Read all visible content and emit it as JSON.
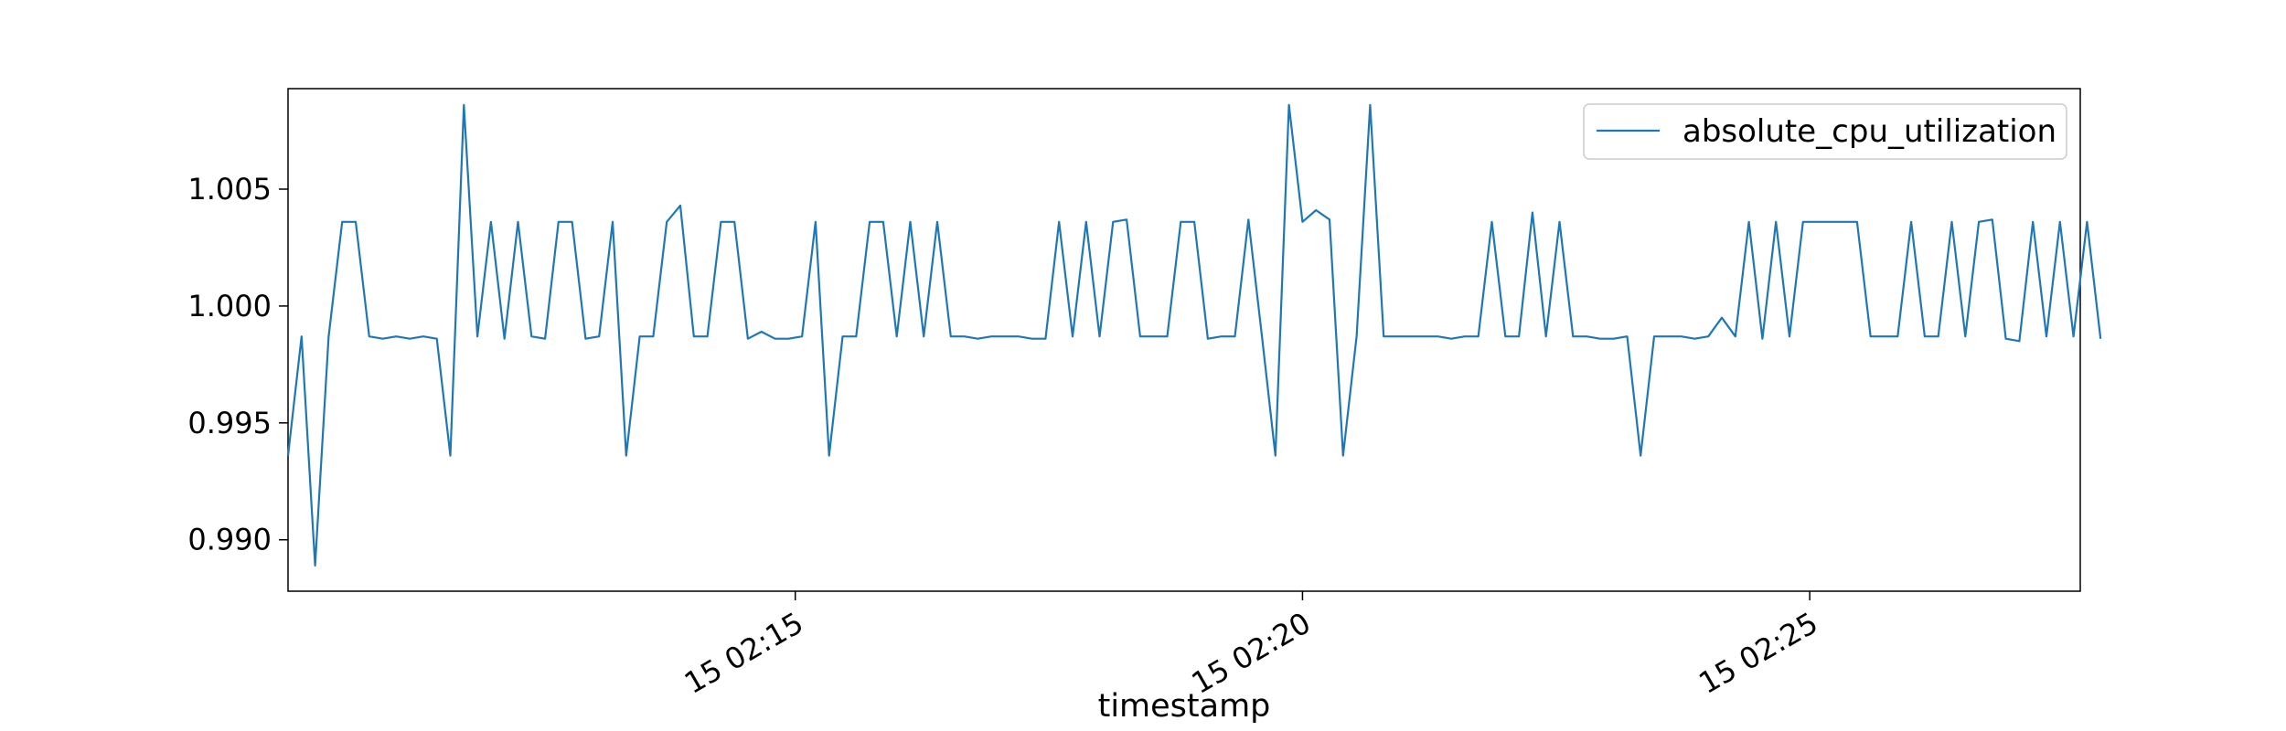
{
  "chart_data": {
    "type": "line",
    "xlabel": "timestamp",
    "ylabel": "",
    "title": "",
    "legend_position": "top-right",
    "grid": false,
    "ylim": [
      0.9878,
      1.0093
    ],
    "xlim": [
      "15 02:10:00",
      "15 02:27:40"
    ],
    "x_ticks": [
      {
        "value": "15 02:15:00",
        "label": "15 02:15"
      },
      {
        "value": "15 02:20:00",
        "label": "15 02:20"
      },
      {
        "value": "15 02:25:00",
        "label": "15 02:25"
      }
    ],
    "y_ticks": [
      {
        "value": 0.99,
        "label": "0.990"
      },
      {
        "value": 0.995,
        "label": "0.995"
      },
      {
        "value": 1.0,
        "label": "1.000"
      },
      {
        "value": 1.005,
        "label": "1.005"
      }
    ],
    "colors": {
      "line": "#1f77b4"
    },
    "series": [
      {
        "name": "absolute_cpu_utilization",
        "x_start": "15 02:10:00",
        "x_step_seconds": 8,
        "values": [
          0.9936,
          0.9987,
          0.9889,
          0.9987,
          1.0036,
          1.0036,
          0.9987,
          0.9986,
          0.9987,
          0.9986,
          0.9987,
          0.9986,
          0.9936,
          1.0086,
          0.9987,
          1.0036,
          0.9986,
          1.0036,
          0.9987,
          0.9986,
          1.0036,
          1.0036,
          0.9986,
          0.9987,
          1.0036,
          0.9936,
          0.9987,
          0.9987,
          1.0036,
          1.0043,
          0.9987,
          0.9987,
          1.0036,
          1.0036,
          0.9986,
          0.9989,
          0.9986,
          0.9986,
          0.9987,
          1.0036,
          0.9936,
          0.9987,
          0.9987,
          1.0036,
          1.0036,
          0.9987,
          1.0036,
          0.9987,
          1.0036,
          0.9987,
          0.9987,
          0.9986,
          0.9987,
          0.9987,
          0.9987,
          0.9986,
          0.9986,
          1.0036,
          0.9987,
          1.0036,
          0.9987,
          1.0036,
          1.0037,
          0.9987,
          0.9987,
          0.9987,
          1.0036,
          1.0036,
          0.9986,
          0.9987,
          0.9987,
          1.0037,
          0.9987,
          0.9936,
          1.0086,
          1.0036,
          1.0041,
          1.0037,
          0.9936,
          0.9987,
          1.0086,
          0.9987,
          0.9987,
          0.9987,
          0.9987,
          0.9987,
          0.9986,
          0.9987,
          0.9987,
          1.0036,
          0.9987,
          0.9987,
          1.004,
          0.9987,
          1.0036,
          0.9987,
          0.9987,
          0.9986,
          0.9986,
          0.9987,
          0.9936,
          0.9987,
          0.9987,
          0.9987,
          0.9986,
          0.9987,
          0.9995,
          0.9987,
          1.0036,
          0.9986,
          1.0036,
          0.9987,
          1.0036,
          1.0036,
          1.0036,
          1.0036,
          1.0036,
          0.9987,
          0.9987,
          0.9987,
          1.0036,
          0.9987,
          0.9987,
          1.0036,
          0.9987,
          1.0036,
          1.0037,
          0.9986,
          0.9985,
          1.0036,
          0.9987,
          1.0036,
          0.9987,
          1.0036,
          0.9986
        ]
      }
    ]
  }
}
